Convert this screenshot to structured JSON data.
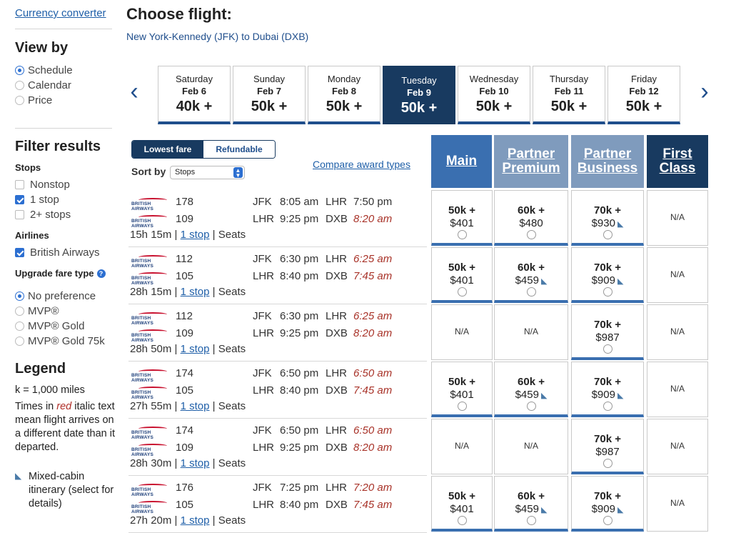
{
  "sidebar": {
    "currency_link": "Currency converter",
    "view_by_title": "View by",
    "view_by": [
      "Schedule",
      "Calendar",
      "Price"
    ],
    "view_by_selected": 0,
    "filter_title": "Filter results",
    "stops_title": "Stops",
    "stops": [
      {
        "label": "Nonstop",
        "checked": false
      },
      {
        "label": "1 stop",
        "checked": true
      },
      {
        "label": "2+ stops",
        "checked": false
      }
    ],
    "airlines_title": "Airlines",
    "airline": {
      "label": "British Airways",
      "checked": true
    },
    "upgrade_title": "Upgrade fare type",
    "upgrade_options": [
      "No preference",
      "MVP®",
      "MVP® Gold",
      "MVP® Gold 75k"
    ],
    "legend_title": "Legend",
    "legend_k": "k = 1,000 miles",
    "legend_red_pre": "Times in ",
    "legend_red_word": "red",
    "legend_red_post": " italic text mean flight arrives on a different date than it departed.",
    "legend_mixed": "Mixed-cabin itinerary (select for details)"
  },
  "header": {
    "title": "Choose flight:",
    "route": "New York-Kennedy (JFK) to Dubai (DXB)"
  },
  "dates": [
    {
      "dow": "Saturday",
      "date": "Feb 6",
      "points": "40k +"
    },
    {
      "dow": "Sunday",
      "date": "Feb 7",
      "points": "50k +"
    },
    {
      "dow": "Monday",
      "date": "Feb 8",
      "points": "50k +"
    },
    {
      "dow": "Tuesday",
      "date": "Feb 9",
      "points": "50k +",
      "selected": true
    },
    {
      "dow": "Wednesday",
      "date": "Feb 10",
      "points": "50k +"
    },
    {
      "dow": "Thursday",
      "date": "Feb 11",
      "points": "50k +"
    },
    {
      "dow": "Friday",
      "date": "Feb 12",
      "points": "50k +"
    }
  ],
  "controls": {
    "fare_options": [
      "Lowest fare",
      "Refundable"
    ],
    "sort_label": "Sort by",
    "sort_value": "Stops",
    "compare_link": "Compare award types"
  },
  "cabins": [
    {
      "label_1": "Main",
      "label_2": "",
      "color": "#3a6fb0"
    },
    {
      "label_1": "Partner",
      "label_2": "Premium",
      "color": "#7f9bbd"
    },
    {
      "label_1": "Partner",
      "label_2": "Business",
      "color": "#7f9bbd"
    },
    {
      "label_1": "First",
      "label_2": "Class",
      "color": "#183a60"
    }
  ],
  "flights": [
    {
      "segments": [
        {
          "num": "178",
          "from": "JFK",
          "dep": "8:05 am",
          "to": "LHR",
          "arr": "7:50 pm",
          "arr_red": false
        },
        {
          "num": "109",
          "from": "LHR",
          "dep": "9:25 pm",
          "to": "DXB",
          "arr": "8:20 am",
          "arr_red": true
        }
      ],
      "duration": "15h 15m",
      "stops": "1 stop",
      "seats": "Seats",
      "fares": [
        {
          "miles": "50k +",
          "price": "$401",
          "mixed": false
        },
        {
          "miles": "60k +",
          "price": "$480",
          "mixed": false
        },
        {
          "miles": "70k +",
          "price": "$930",
          "mixed": true
        },
        {
          "na": "N/A"
        }
      ]
    },
    {
      "segments": [
        {
          "num": "112",
          "from": "JFK",
          "dep": "6:30 pm",
          "to": "LHR",
          "arr": "6:25 am",
          "arr_red": true
        },
        {
          "num": "105",
          "from": "LHR",
          "dep": "8:40 pm",
          "to": "DXB",
          "arr": "7:45 am",
          "arr_red": true
        }
      ],
      "duration": "28h 15m",
      "stops": "1 stop",
      "seats": "Seats",
      "fares": [
        {
          "miles": "50k +",
          "price": "$401",
          "mixed": false
        },
        {
          "miles": "60k +",
          "price": "$459",
          "mixed": true
        },
        {
          "miles": "70k +",
          "price": "$909",
          "mixed": true
        },
        {
          "na": "N/A"
        }
      ]
    },
    {
      "segments": [
        {
          "num": "112",
          "from": "JFK",
          "dep": "6:30 pm",
          "to": "LHR",
          "arr": "6:25 am",
          "arr_red": true
        },
        {
          "num": "109",
          "from": "LHR",
          "dep": "9:25 pm",
          "to": "DXB",
          "arr": "8:20 am",
          "arr_red": true
        }
      ],
      "duration": "28h 50m",
      "stops": "1 stop",
      "seats": "Seats",
      "fares": [
        {
          "na": "N/A"
        },
        {
          "na": "N/A"
        },
        {
          "miles": "70k +",
          "price": "$987",
          "mixed": false
        },
        {
          "na": "N/A"
        }
      ]
    },
    {
      "segments": [
        {
          "num": "174",
          "from": "JFK",
          "dep": "6:50 pm",
          "to": "LHR",
          "arr": "6:50 am",
          "arr_red": true
        },
        {
          "num": "105",
          "from": "LHR",
          "dep": "8:40 pm",
          "to": "DXB",
          "arr": "7:45 am",
          "arr_red": true
        }
      ],
      "duration": "27h 55m",
      "stops": "1 stop",
      "seats": "Seats",
      "fares": [
        {
          "miles": "50k +",
          "price": "$401",
          "mixed": false
        },
        {
          "miles": "60k +",
          "price": "$459",
          "mixed": true
        },
        {
          "miles": "70k +",
          "price": "$909",
          "mixed": true
        },
        {
          "na": "N/A"
        }
      ]
    },
    {
      "segments": [
        {
          "num": "174",
          "from": "JFK",
          "dep": "6:50 pm",
          "to": "LHR",
          "arr": "6:50 am",
          "arr_red": true
        },
        {
          "num": "109",
          "from": "LHR",
          "dep": "9:25 pm",
          "to": "DXB",
          "arr": "8:20 am",
          "arr_red": true
        }
      ],
      "duration": "28h 30m",
      "stops": "1 stop",
      "seats": "Seats",
      "fares": [
        {
          "na": "N/A"
        },
        {
          "na": "N/A"
        },
        {
          "miles": "70k +",
          "price": "$987",
          "mixed": false
        },
        {
          "na": "N/A"
        }
      ]
    },
    {
      "segments": [
        {
          "num": "176",
          "from": "JFK",
          "dep": "7:25 pm",
          "to": "LHR",
          "arr": "7:20 am",
          "arr_red": true
        },
        {
          "num": "105",
          "from": "LHR",
          "dep": "8:40 pm",
          "to": "DXB",
          "arr": "7:45 am",
          "arr_red": true
        }
      ],
      "duration": "27h 20m",
      "stops": "1 stop",
      "seats": "Seats",
      "fares": [
        {
          "miles": "50k +",
          "price": "$401",
          "mixed": false
        },
        {
          "miles": "60k +",
          "price": "$459",
          "mixed": true
        },
        {
          "miles": "70k +",
          "price": "$909",
          "mixed": true
        },
        {
          "na": "N/A"
        }
      ]
    }
  ],
  "icons": {
    "prev": "chevron-left-icon",
    "next": "chevron-right-icon",
    "help": "help-icon",
    "mixed": "mixed-cabin-seat-icon",
    "airline_logo": "british-airways-logo"
  }
}
